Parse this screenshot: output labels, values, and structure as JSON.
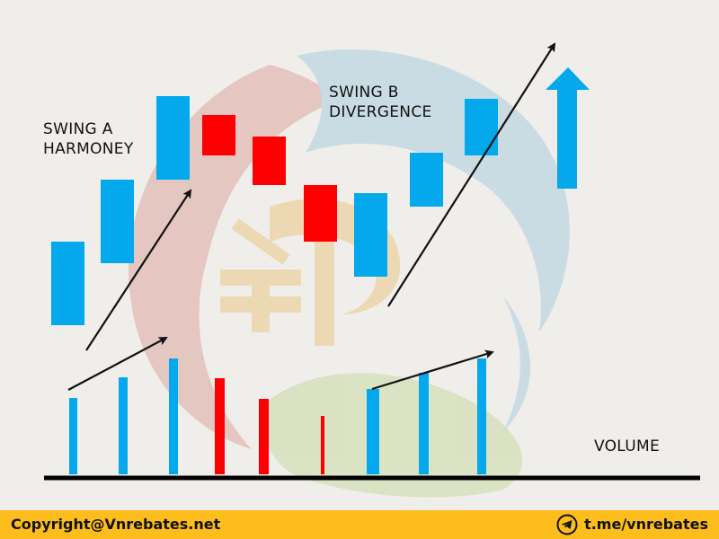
{
  "colors": {
    "bullish": "#03a9ec",
    "bearish": "#ff0000",
    "axis": "#000000",
    "arrow": "#111111",
    "footer_bg": "#fcbd1d",
    "watermark_red": "#e2b9b3",
    "watermark_blue": "#bcd6e2",
    "watermark_green": "#d3dfb6",
    "watermark_gold": "#ebd3a2"
  },
  "labels": {
    "swing_a_line1": "SWING A",
    "swing_a_line2": "HARMONEY",
    "swing_b_line1": "SWING B",
    "swing_b_line2": "DIVERGENCE",
    "volume": "VOLUME"
  },
  "footer": {
    "copyright": "Copyright@Vnrebates.net",
    "telegram": "t.me/vnrebates",
    "telegram_icon": "telegram-icon"
  },
  "chart_data": {
    "type": "bar",
    "note_series": "illustrative candlestick bodies (open/close) and volume bars",
    "candles": [
      {
        "open": 32,
        "close": 63,
        "dir": "up"
      },
      {
        "open": 55,
        "close": 86,
        "dir": "up"
      },
      {
        "open": 86,
        "close": 117,
        "dir": "up"
      },
      {
        "open": 110,
        "close": 95,
        "dir": "down"
      },
      {
        "open": 102,
        "close": 84,
        "dir": "down"
      },
      {
        "open": 84,
        "close": 63,
        "dir": "down"
      },
      {
        "open": 50,
        "close": 81,
        "dir": "up"
      },
      {
        "open": 76,
        "close": 96,
        "dir": "up"
      },
      {
        "open": 95,
        "close": 116,
        "dir": "up"
      }
    ],
    "volume": [
      {
        "value": 85,
        "dir": "up"
      },
      {
        "value": 108,
        "dir": "up"
      },
      {
        "value": 129,
        "dir": "up"
      },
      {
        "value": 107,
        "dir": "down"
      },
      {
        "value": 84,
        "dir": "down"
      },
      {
        "value": 65,
        "dir": "down"
      },
      {
        "value": 95,
        "dir": "up"
      },
      {
        "value": 113,
        "dir": "up"
      },
      {
        "value": 129,
        "dir": "up"
      }
    ],
    "up_arrow": {
      "from": 83,
      "to": 130
    },
    "grid": false,
    "title": "",
    "xlabel": "",
    "ylabel": ""
  }
}
